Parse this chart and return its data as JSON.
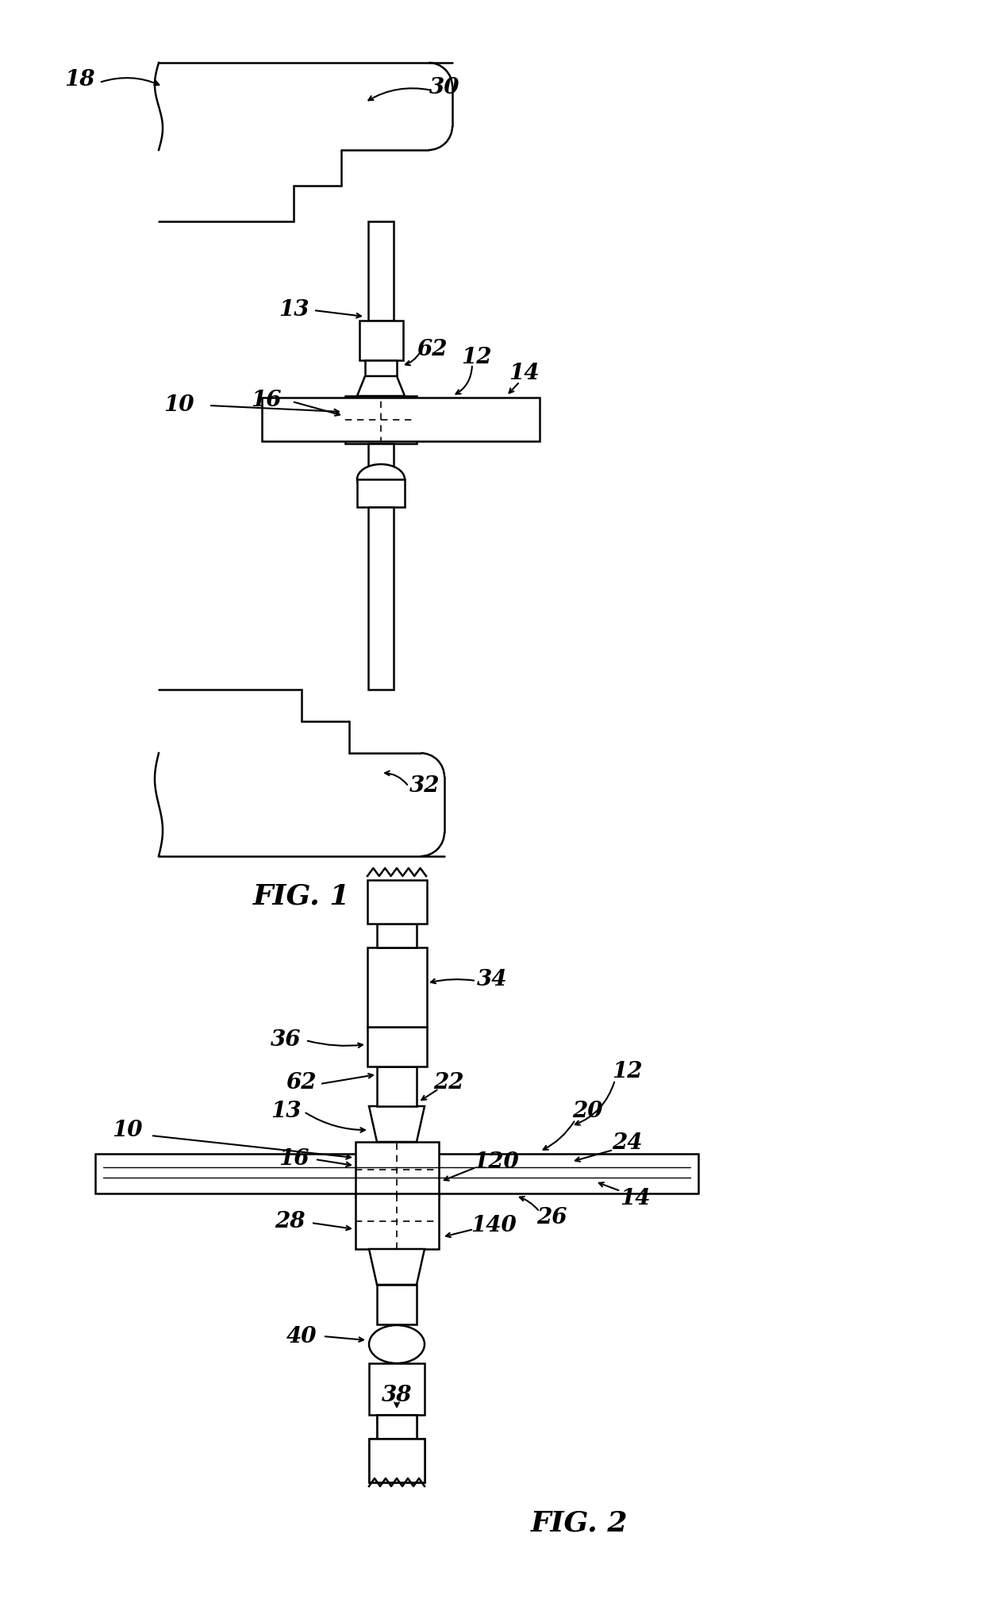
{
  "bg": "#ffffff",
  "lc": "#000000",
  "lw": 1.8,
  "thin": 1.0,
  "fig1_title": "FIG. 1",
  "fig2_title": "FIG. 2"
}
